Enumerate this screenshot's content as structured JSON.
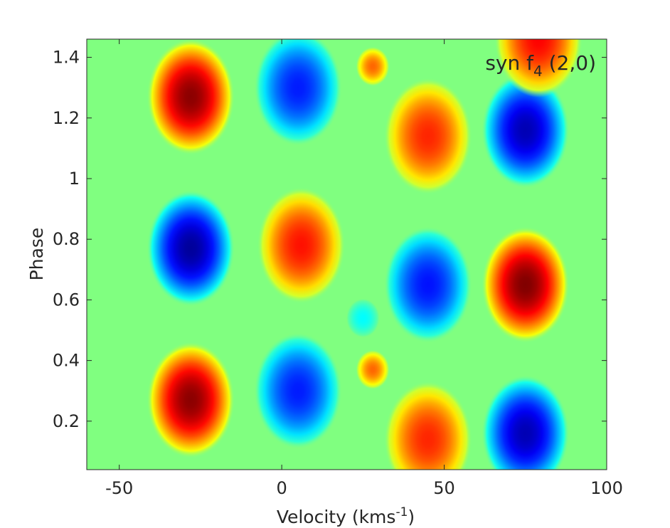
{
  "chart_data": {
    "type": "heatmap",
    "colormap": "jet",
    "annotation": {
      "main": "syn f",
      "subscript": "4",
      "suffix": " (2,0)"
    },
    "xlabel": {
      "main": "Velocity (kms",
      "superscript": "-1",
      "suffix": ")"
    },
    "ylabel": "Phase",
    "xlim": [
      -60,
      100
    ],
    "ylim": [
      0.04,
      1.46
    ],
    "xticks": [
      -50,
      0,
      50,
      100
    ],
    "xtick_labels": [
      "-50",
      "0",
      "50",
      "100"
    ],
    "yticks": [
      0.2,
      0.4,
      0.6,
      0.8,
      1.0,
      1.2,
      1.4
    ],
    "ytick_labels": [
      "0.2",
      "0.4",
      "0.6",
      "0.8",
      "1",
      "1.2",
      "1.4"
    ],
    "value_range": [
      -1,
      1
    ],
    "features": [
      {
        "x": -28,
        "y": 1.27,
        "value": 0.98
      },
      {
        "x": 5,
        "y": 1.3,
        "value": -0.7
      },
      {
        "x": 28,
        "y": 1.37,
        "value": 0.55
      },
      {
        "x": 45,
        "y": 1.14,
        "value": 0.68
      },
      {
        "x": 75,
        "y": 1.16,
        "value": -0.9
      },
      {
        "x": 79,
        "y": 1.46,
        "value": 0.75
      },
      {
        "x": -28,
        "y": 0.77,
        "value": -0.95
      },
      {
        "x": 6,
        "y": 0.78,
        "value": 0.72
      },
      {
        "x": 45,
        "y": 0.65,
        "value": -0.72
      },
      {
        "x": 75,
        "y": 0.65,
        "value": 1.0
      },
      {
        "x": 25,
        "y": 0.54,
        "value": -0.25
      },
      {
        "x": -28,
        "y": 0.27,
        "value": 0.98
      },
      {
        "x": 5,
        "y": 0.3,
        "value": -0.7
      },
      {
        "x": 28,
        "y": 0.37,
        "value": 0.55
      },
      {
        "x": 45,
        "y": 0.14,
        "value": 0.68
      },
      {
        "x": 75,
        "y": 0.16,
        "value": -0.9
      }
    ]
  }
}
